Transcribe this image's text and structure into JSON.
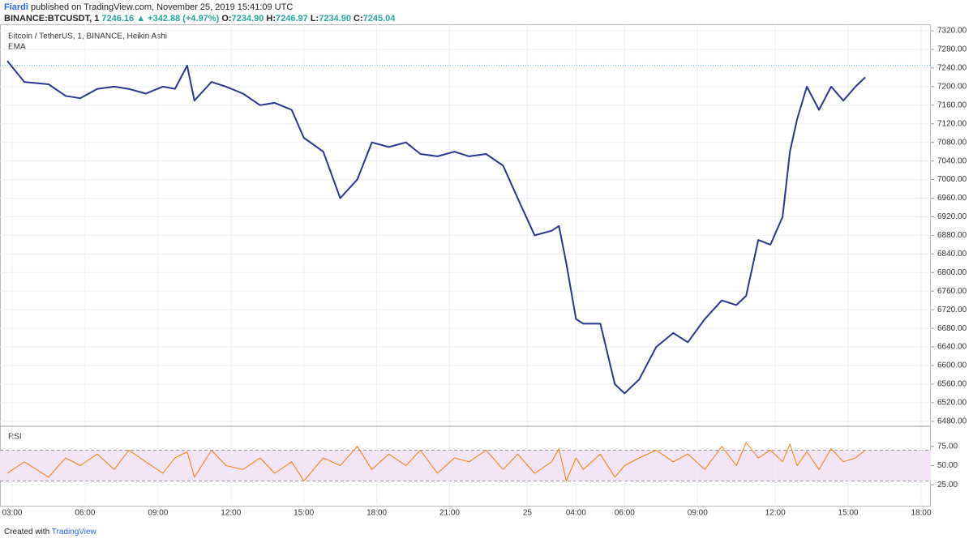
{
  "header": {
    "author": "Fiardi",
    "published": "published on TradingView.com, November 25, 2019 15:41:09 UTC",
    "symbol": "BINANCE:BTCUSDT, 1",
    "price": "7246.16",
    "change": "▲ +342.88 (+4.97%)",
    "o_label": "O:",
    "o": "7234.90",
    "h_label": "H:",
    "h": "7246.97",
    "l_label": "L:",
    "l": "7234.90",
    "c_label": "C:",
    "c": "7245.04"
  },
  "footer": {
    "created": "Created with",
    "brand": "TradingView"
  },
  "chart_data": [
    {
      "type": "line",
      "title": "Bitcoin / TetherUS, 1, BINANCE, Heikin Ashi",
      "last_price": 7246.16,
      "x": [
        -0.2,
        0.5,
        1.5,
        2.2,
        2.8,
        3.5,
        4.2,
        4.8,
        5.5,
        6.2,
        6.7,
        7.2,
        7.5,
        8.2,
        8.8,
        9.5,
        10.2,
        10.8,
        11.5,
        12,
        12.8,
        13.5,
        14.2,
        14.8,
        15.5,
        16.2,
        16.8,
        17.5,
        18.2,
        18.8,
        19.5,
        20.2,
        20.8,
        21.5,
        22.2,
        22.5,
        22.8,
        23.2,
        23.5,
        24.2,
        24.8,
        25.2,
        25.8,
        26.5,
        27.2,
        27.8,
        28.5,
        29.2,
        29.8,
        30.2,
        30.7,
        31.2,
        31.7,
        32,
        32.3,
        32.7,
        33.2,
        33.7,
        34.2,
        34.7,
        35.1
      ],
      "series": [
        {
          "name": "EMA",
          "color": "#283593",
          "values": [
            7255,
            7210,
            7205,
            7180,
            7175,
            7195,
            7200,
            7195,
            7185,
            7200,
            7195,
            7245,
            7170,
            7210,
            7200,
            7185,
            7160,
            7165,
            7150,
            7090,
            7060,
            6960,
            7000,
            7080,
            7070,
            7080,
            7055,
            7050,
            7060,
            7050,
            7055,
            7030,
            6960,
            6880,
            6890,
            6900,
            6820,
            6700,
            6690,
            6690,
            6560,
            6540,
            6570,
            6640,
            6670,
            6650,
            6700,
            6740,
            6730,
            6750,
            6870,
            6860,
            6920,
            7060,
            7130,
            7200,
            7150,
            7200,
            7170,
            7200,
            7220
          ]
        }
      ],
      "xlim": [
        -0.5,
        37.8
      ],
      "xticks": [
        {
          "value": 0,
          "label": "03:00"
        },
        {
          "value": 3,
          "label": "06:00"
        },
        {
          "value": 6,
          "label": "09:00"
        },
        {
          "value": 9,
          "label": "12:00"
        },
        {
          "value": 12,
          "label": "15:00"
        },
        {
          "value": 15,
          "label": "18:00"
        },
        {
          "value": 18,
          "label": "21:00"
        },
        {
          "value": 21.2,
          "label": "25"
        },
        {
          "value": 23.2,
          "label": "04:00"
        },
        {
          "value": 25.2,
          "label": "06:00"
        },
        {
          "value": 28.2,
          "label": "09:00"
        },
        {
          "value": 31.4,
          "label": "12:00"
        },
        {
          "value": 34.4,
          "label": "15:00"
        },
        {
          "value": 37.4,
          "label": "18:00"
        }
      ],
      "ylim": [
        6471,
        7334
      ],
      "yticks": [
        {
          "value": 6480,
          "label": "6480.00"
        },
        {
          "value": 6520,
          "label": "6520.00"
        },
        {
          "value": 6560,
          "label": "6560.00"
        },
        {
          "value": 6600,
          "label": "6600.00"
        },
        {
          "value": 6640,
          "label": "6640.00"
        },
        {
          "value": 6680,
          "label": "6680.00"
        },
        {
          "value": 6720,
          "label": "6720.00"
        },
        {
          "value": 6760,
          "label": "6760.00"
        },
        {
          "value": 6800,
          "label": "6800.00"
        },
        {
          "value": 6840,
          "label": "6840.00"
        },
        {
          "value": 6880,
          "label": "6880.00"
        },
        {
          "value": 6920,
          "label": "6920.00"
        },
        {
          "value": 6960,
          "label": "6960.00"
        },
        {
          "value": 7000,
          "label": "7000.00"
        },
        {
          "value": 7040,
          "label": "7040.00"
        },
        {
          "value": 7080,
          "label": "7080.00"
        },
        {
          "value": 7120,
          "label": "7120.00"
        },
        {
          "value": 7160,
          "label": "7160.00"
        },
        {
          "value": 7200,
          "label": "7200.00"
        },
        {
          "value": 7240,
          "label": "7240.00"
        },
        {
          "value": 7280,
          "label": "7280.00"
        },
        {
          "value": 7320,
          "label": "7320.00"
        }
      ],
      "grid": true
    },
    {
      "type": "line",
      "title": "RSI",
      "color": "#f57c00",
      "values": [
        40,
        55,
        35,
        60,
        50,
        65,
        45,
        70,
        55,
        40,
        60,
        68,
        35,
        70,
        50,
        45,
        60,
        40,
        55,
        30,
        60,
        50,
        75,
        45,
        65,
        50,
        70,
        40,
        60,
        55,
        70,
        45,
        65,
        40,
        55,
        72,
        30,
        60,
        45,
        65,
        35,
        50,
        60,
        70,
        55,
        65,
        45,
        75,
        50,
        80,
        60,
        70,
        55,
        78,
        50,
        68,
        45,
        72,
        55,
        60,
        70
      ],
      "ylim": [
        0,
        100
      ],
      "yticks": [
        {
          "value": 25,
          "label": "25.00"
        },
        {
          "value": 50,
          "label": "50.00"
        },
        {
          "value": 75,
          "label": "75.00"
        }
      ],
      "bands": [
        30,
        70
      ]
    }
  ]
}
